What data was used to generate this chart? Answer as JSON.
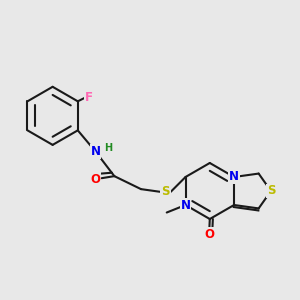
{
  "background_color": "#e8e8e8",
  "bond_color": "#1a1a1a",
  "atom_colors": {
    "N": "#0000ee",
    "O": "#ff0000",
    "S": "#bbbb00",
    "F": "#ff69b4",
    "H": "#228b22",
    "C": "#1a1a1a"
  },
  "lw": 1.5,
  "fs": 8.5
}
